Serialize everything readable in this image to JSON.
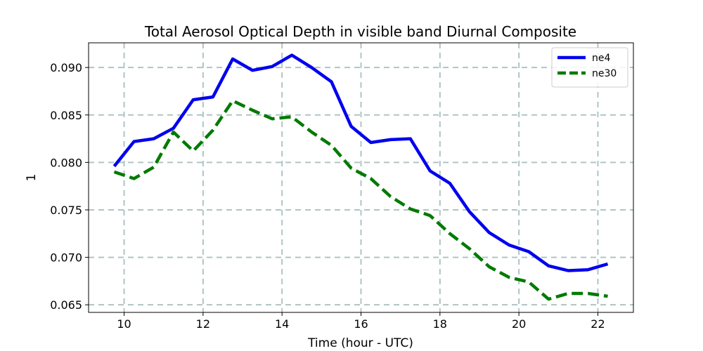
{
  "chart_data": {
    "type": "line",
    "title": "Total Aerosol Optical Depth in visible band Diurnal Composite",
    "xlabel": "Time (hour - UTC)",
    "ylabel": "1",
    "xlim": [
      9.1,
      22.9
    ],
    "ylim": [
      0.0642,
      0.0926
    ],
    "xticks": [
      10,
      12,
      14,
      16,
      18,
      20,
      22
    ],
    "xtick_labels": [
      "10",
      "12",
      "14",
      "16",
      "18",
      "20",
      "22"
    ],
    "yticks": [
      0.065,
      0.07,
      0.075,
      0.08,
      0.085,
      0.09
    ],
    "ytick_labels": [
      "0.065",
      "0.070",
      "0.075",
      "0.080",
      "0.085",
      "0.090"
    ],
    "grid": true,
    "legend_position": "top-right",
    "x": [
      9.75,
      10.25,
      10.75,
      11.25,
      11.75,
      12.25,
      12.75,
      13.25,
      13.75,
      14.25,
      14.75,
      15.25,
      15.75,
      16.25,
      16.75,
      17.25,
      17.75,
      18.25,
      18.75,
      19.25,
      19.75,
      20.25,
      20.75,
      21.25,
      21.75,
      22.25
    ],
    "series": [
      {
        "name": "ne4",
        "color": "#0000ee",
        "style": "solid",
        "values": [
          0.0796,
          0.0822,
          0.0825,
          0.0836,
          0.0866,
          0.0869,
          0.0909,
          0.0897,
          0.0901,
          0.0913,
          0.09,
          0.0885,
          0.0838,
          0.0821,
          0.0824,
          0.0825,
          0.0791,
          0.0778,
          0.0748,
          0.0726,
          0.0713,
          0.0706,
          0.0691,
          0.0686,
          0.0687,
          0.0693
        ]
      },
      {
        "name": "ne30",
        "color": "#007a00",
        "style": "dashed",
        "values": [
          0.079,
          0.0783,
          0.0795,
          0.0832,
          0.0812,
          0.0834,
          0.0865,
          0.0855,
          0.0846,
          0.0848,
          0.0832,
          0.0818,
          0.0794,
          0.0783,
          0.0764,
          0.0751,
          0.0744,
          0.0725,
          0.0709,
          0.069,
          0.0679,
          0.0674,
          0.0656,
          0.0662,
          0.0662,
          0.0659
        ]
      }
    ]
  }
}
